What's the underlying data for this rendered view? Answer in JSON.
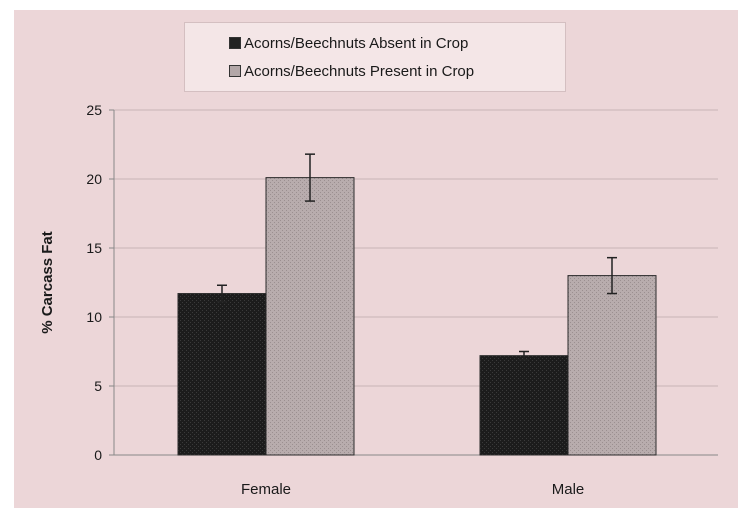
{
  "chart_data": {
    "type": "bar",
    "title": "",
    "xlabel": "",
    "ylabel": "% Carcass Fat",
    "ylim": [
      0,
      25
    ],
    "yticks": [
      0,
      5,
      10,
      15,
      20,
      25
    ],
    "grid": true,
    "legend_position": "top-center",
    "categories": [
      "Female",
      "Male"
    ],
    "series": [
      {
        "name": "Acorns/Beechnuts Absent in Crop",
        "values": [
          11.7,
          7.2
        ],
        "error": [
          0.6,
          0.3
        ],
        "color": "#222222"
      },
      {
        "name": "Acorns/Beechnuts Present in Crop",
        "values": [
          20.1,
          13.0
        ],
        "error": [
          1.7,
          1.3
        ],
        "color": "#b3a7a8"
      }
    ]
  }
}
